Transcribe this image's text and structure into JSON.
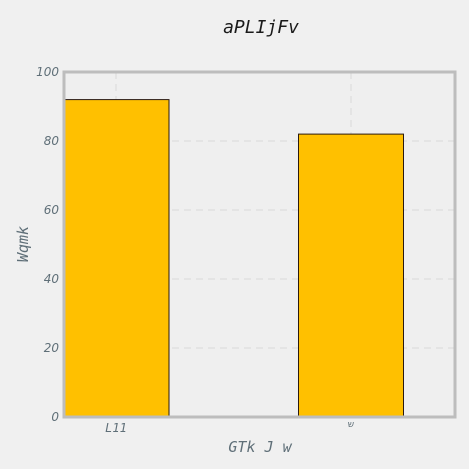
{
  "chart_data": {
    "type": "bar",
    "title": "aPLIjFv",
    "xlabel": "GTk J w",
    "ylabel": "Wqmk",
    "categories": [
      "L11",
      "ש"
    ],
    "values": [
      92,
      82
    ],
    "ylim": [
      0,
      100
    ],
    "yticks": [
      0,
      20,
      40,
      60,
      80,
      100
    ],
    "grid": true,
    "bar_color": "#ffc000",
    "bar_edge_color": "#2a1a10",
    "plot_background": "#efefef",
    "frame_color": "#bdbdbd",
    "grid_color": "#e0e0e0"
  }
}
